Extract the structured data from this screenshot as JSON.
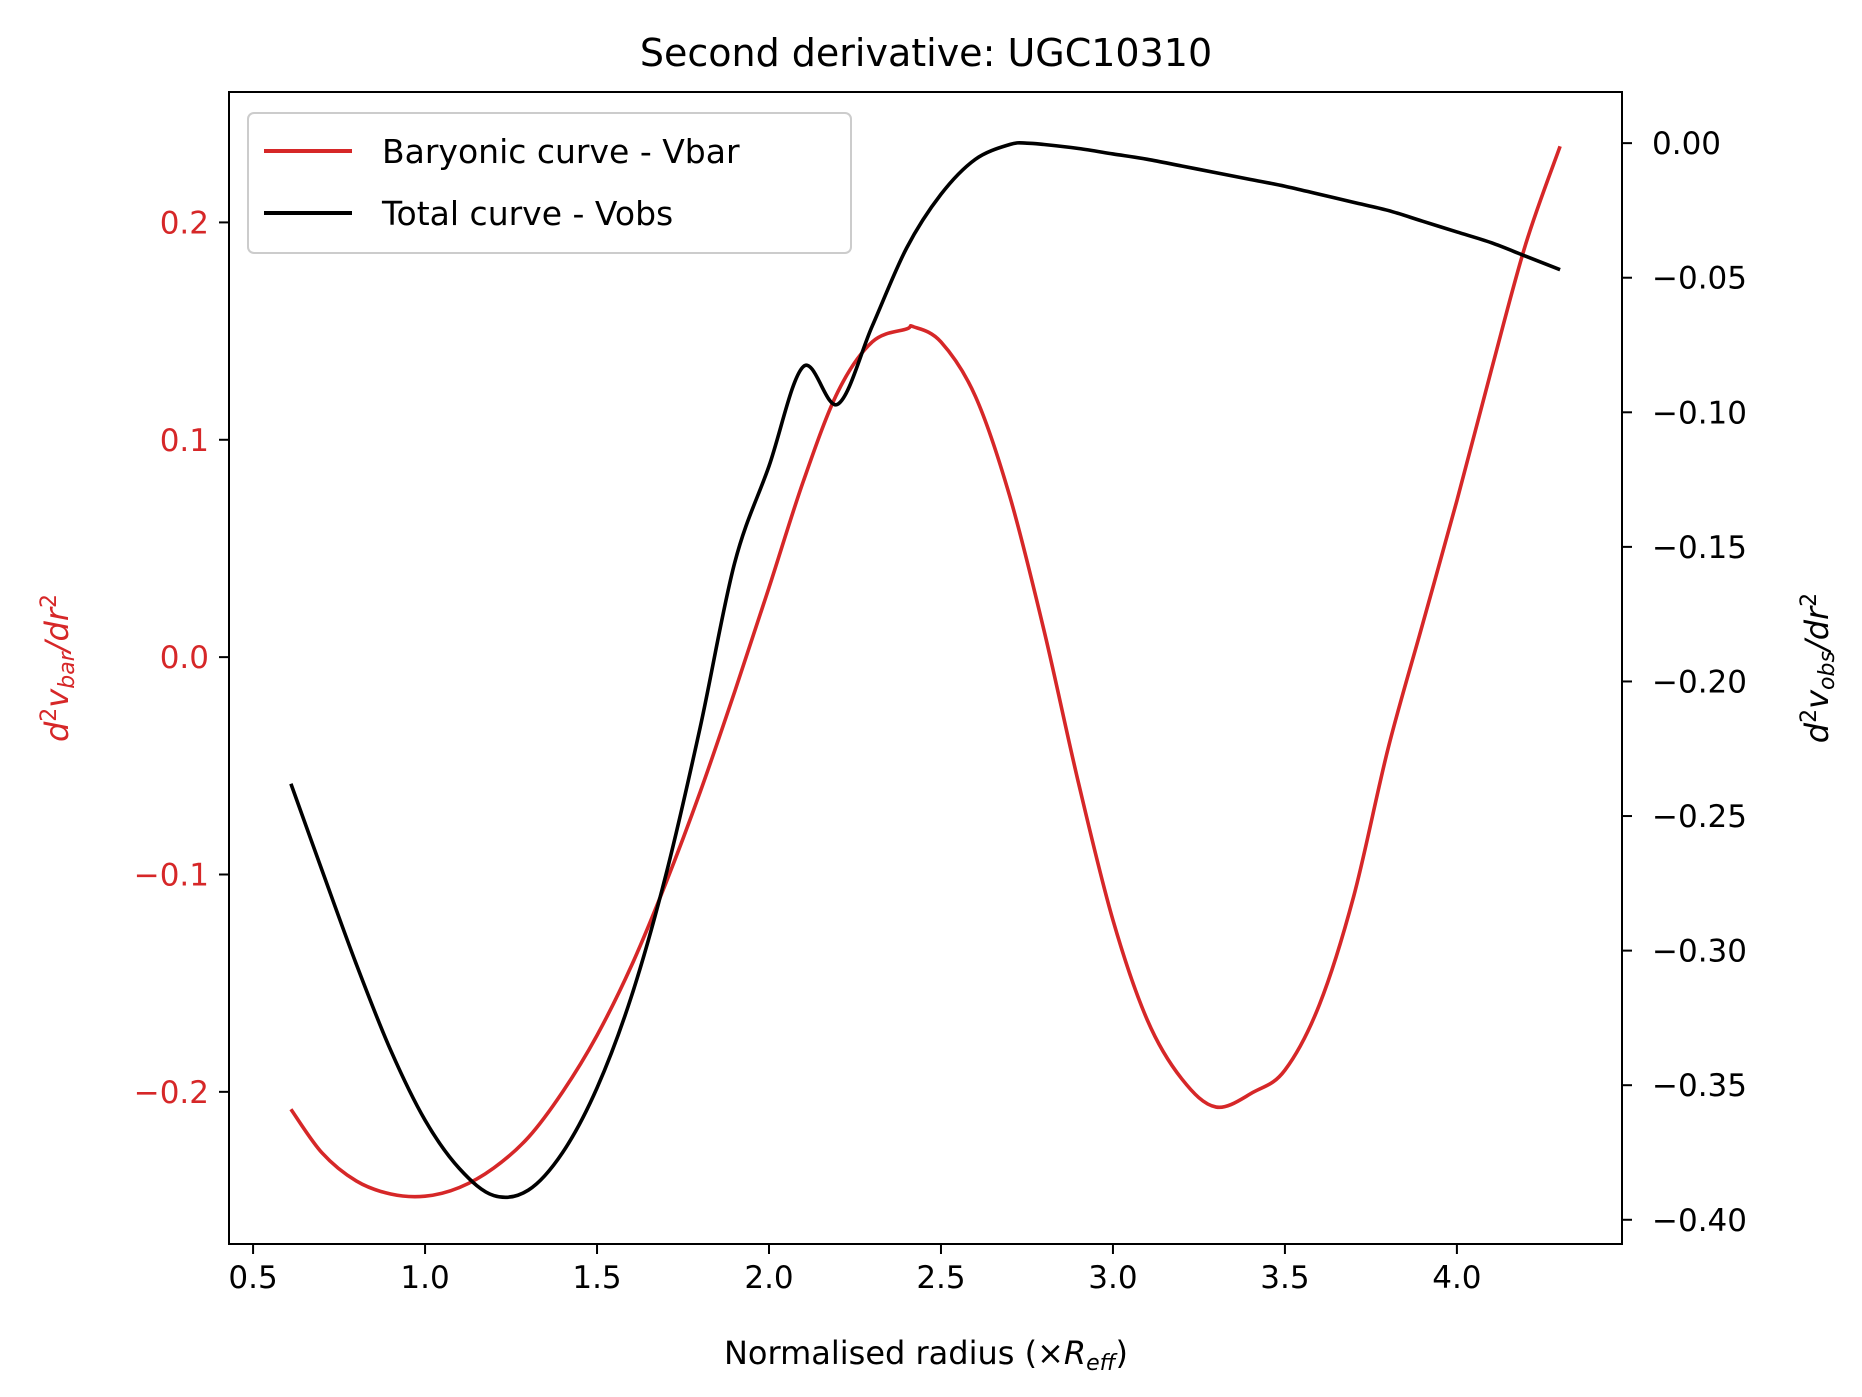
{
  "chart_data": {
    "type": "line",
    "title": "Second derivative: UGC10310",
    "xlabel": {
      "main": "Normalised radius (×",
      "italic": "R",
      "sub": "eff",
      "close": ")"
    },
    "ylabel_left": {
      "d": "d",
      "sup1": "2",
      "v": "v",
      "sub": "bar",
      "slash": "/dr",
      "sup2": "2"
    },
    "ylabel_right": {
      "d": "d",
      "sup1": "2",
      "v": "v",
      "sub": "obs",
      "slash": "/dr",
      "sup2": "2"
    },
    "xlim": [
      0.43,
      4.48
    ],
    "ylim_left": [
      -0.27,
      0.26
    ],
    "ylim_right": [
      -0.409,
      0.019
    ],
    "x_ticks": [
      0.5,
      1.0,
      1.5,
      2.0,
      2.5,
      3.0,
      3.5,
      4.0
    ],
    "x_tick_labels": [
      "0.5",
      "1.0",
      "1.5",
      "2.0",
      "2.5",
      "3.0",
      "3.5",
      "4.0"
    ],
    "y_left_ticks": [
      -0.2,
      -0.1,
      0.0,
      0.1,
      0.2
    ],
    "y_left_tick_labels": [
      "−0.2",
      "−0.1",
      "0.0",
      "0.1",
      "0.2"
    ],
    "y_right_ticks": [
      -0.4,
      -0.35,
      -0.3,
      -0.25,
      -0.2,
      -0.15,
      -0.1,
      -0.05,
      0.0
    ],
    "y_right_tick_labels": [
      "−0.40",
      "−0.35",
      "−0.30",
      "−0.25",
      "−0.20",
      "−0.15",
      "−0.10",
      "−0.05",
      "0.00"
    ],
    "legend_position": "upper-left",
    "grid": false,
    "series": [
      {
        "name": "Baryonic curve - Vbar",
        "color": "#d62728",
        "axis": "left",
        "x": [
          0.61,
          0.7,
          0.8,
          0.9,
          1.0,
          1.1,
          1.2,
          1.3,
          1.4,
          1.5,
          1.6,
          1.7,
          1.8,
          1.9,
          2.0,
          2.1,
          2.2,
          2.3,
          2.4,
          2.42,
          2.5,
          2.6,
          2.7,
          2.8,
          2.9,
          3.0,
          3.1,
          3.2,
          3.3,
          3.41,
          3.5,
          3.6,
          3.7,
          3.8,
          3.9,
          4.0,
          4.1,
          4.2,
          4.3
        ],
        "y": [
          -0.208,
          -0.228,
          -0.241,
          -0.247,
          -0.248,
          -0.244,
          -0.235,
          -0.221,
          -0.2,
          -0.174,
          -0.142,
          -0.104,
          -0.062,
          -0.016,
          0.032,
          0.081,
          0.122,
          0.145,
          0.151,
          0.152,
          0.145,
          0.12,
          0.074,
          0.012,
          -0.058,
          -0.121,
          -0.167,
          -0.194,
          -0.207,
          -0.2,
          -0.19,
          -0.16,
          -0.11,
          -0.042,
          0.015,
          0.072,
          0.132,
          0.19,
          0.235
        ]
      },
      {
        "name": "Total curve - Vobs",
        "color": "#000000",
        "axis": "right",
        "x": [
          0.61,
          0.7,
          0.8,
          0.9,
          1.0,
          1.1,
          1.2,
          1.3,
          1.4,
          1.5,
          1.6,
          1.7,
          1.8,
          1.9,
          2.0,
          2.1,
          2.2,
          2.3,
          2.4,
          2.5,
          2.6,
          2.7,
          2.75,
          2.8,
          2.9,
          3.0,
          3.1,
          3.2,
          3.3,
          3.4,
          3.5,
          3.6,
          3.7,
          3.8,
          3.9,
          4.0,
          4.1,
          4.2,
          4.3
        ],
        "y": [
          -0.238,
          -0.27,
          -0.305,
          -0.337,
          -0.363,
          -0.381,
          -0.391,
          -0.389,
          -0.375,
          -0.351,
          -0.317,
          -0.272,
          -0.217,
          -0.156,
          -0.12,
          -0.083,
          -0.097,
          -0.068,
          -0.039,
          -0.019,
          -0.006,
          -0.0005,
          0.0,
          -0.0005,
          -0.002,
          -0.004,
          -0.006,
          -0.0085,
          -0.011,
          -0.0135,
          -0.016,
          -0.019,
          -0.022,
          -0.025,
          -0.029,
          -0.033,
          -0.037,
          -0.042,
          -0.047
        ]
      }
    ]
  }
}
